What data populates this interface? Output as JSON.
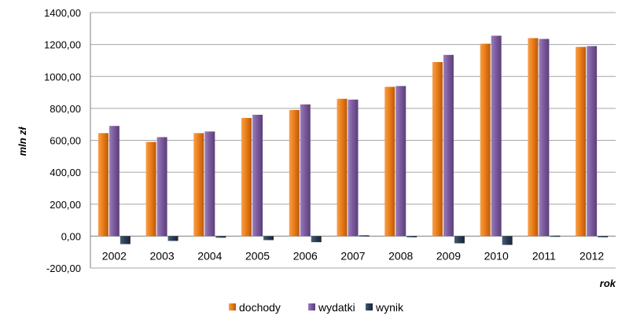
{
  "chart_data": {
    "type": "bar",
    "categories": [
      "2002",
      "2003",
      "2004",
      "2005",
      "2006",
      "2007",
      "2008",
      "2009",
      "2010",
      "2011",
      "2012"
    ],
    "series": [
      {
        "name": "dochody",
        "values": [
          645,
          590,
          645,
          740,
          790,
          860,
          935,
          1090,
          1205,
          1240,
          1185
        ]
      },
      {
        "name": "wydatki",
        "values": [
          690,
          620,
          655,
          760,
          825,
          855,
          940,
          1135,
          1255,
          1235,
          1190
        ]
      },
      {
        "name": "wynik",
        "values": [
          -50,
          -30,
          -10,
          -25,
          -38,
          5,
          -5,
          -45,
          -55,
          3,
          -5
        ]
      }
    ],
    "xlabel": "rok",
    "ylabel": "mln zł",
    "ylim": [
      -200,
      1400
    ],
    "yticks": [
      -200,
      0,
      200,
      400,
      600,
      800,
      1000,
      1200,
      1400
    ],
    "ytick_labels": [
      "-200,00",
      "0,00",
      "200,00",
      "400,00",
      "600,00",
      "800,00",
      "1000,00",
      "1200,00",
      "1400,00"
    ],
    "grid": true,
    "legend_position": "bottom",
    "colors": {
      "dochody": "#ED7D1A",
      "wydatki": "#7D5B9F",
      "wynik": "#2B3E55",
      "grid": "#A6A6A6",
      "axis": "#7F7F7F"
    }
  }
}
